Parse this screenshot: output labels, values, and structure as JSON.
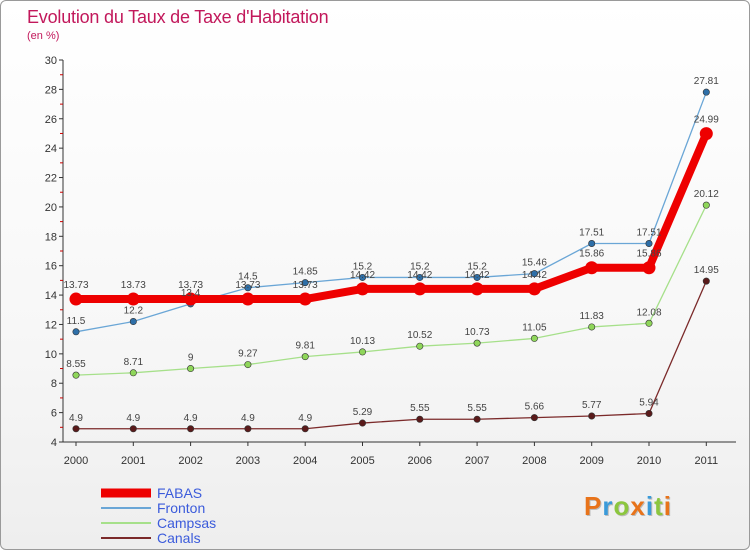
{
  "title": "Evolution du Taux de Taxe d'Habitation",
  "subtitle": "(en %)",
  "logo": "Proxiti",
  "colors": {
    "title": "#c2185b",
    "FABAS": "#ee0000",
    "Fronton": "#6aa6d6",
    "Campsas": "#a6e08a",
    "Canals": "#7b2a2a"
  },
  "chart_data": {
    "type": "line",
    "categories": [
      "2000",
      "2001",
      "2002",
      "2003",
      "2004",
      "2005",
      "2006",
      "2007",
      "2008",
      "2009",
      "2010",
      "2011"
    ],
    "ylim": [
      4,
      30
    ],
    "yticks": [
      4,
      6,
      8,
      10,
      12,
      14,
      16,
      18,
      20,
      22,
      24,
      26,
      28,
      30
    ],
    "grid": false,
    "legend_placement": "bottom-left",
    "series": [
      {
        "name": "FABAS",
        "values": [
          13.73,
          13.73,
          13.73,
          13.73,
          13.73,
          14.42,
          14.42,
          14.42,
          14.42,
          15.86,
          15.86,
          24.99
        ],
        "labels": [
          "13.73",
          "13.73",
          "13.73",
          "13.73",
          "13.73",
          "14.42",
          "14.42",
          "14.42",
          "14.42",
          "15.86",
          "15.86",
          "24.99"
        ]
      },
      {
        "name": "Fronton",
        "values": [
          11.5,
          12.2,
          13.4,
          14.5,
          14.85,
          15.2,
          15.2,
          15.2,
          15.46,
          17.51,
          17.51,
          27.81
        ],
        "labels": [
          "11.5",
          "12.2",
          "13.4",
          "14.5",
          "14.85",
          "15.2",
          "15.2",
          "15.2",
          "15.46",
          "17.51",
          "17.51",
          "27.81"
        ]
      },
      {
        "name": "Campsas",
        "values": [
          8.55,
          8.71,
          9,
          9.27,
          9.81,
          10.13,
          10.52,
          10.73,
          11.05,
          11.83,
          12.08,
          20.12
        ],
        "labels": [
          "8.55",
          "8.71",
          "9",
          "9.27",
          "9.81",
          "10.13",
          "10.52",
          "10.73",
          "11.05",
          "11.83",
          "12.08",
          "20.12"
        ]
      },
      {
        "name": "Canals",
        "values": [
          4.9,
          4.9,
          4.9,
          4.9,
          4.9,
          5.29,
          5.55,
          5.55,
          5.66,
          5.77,
          5.94,
          14.95
        ],
        "labels": [
          "4.9",
          "4.9",
          "4.9",
          "4.9",
          "4.9",
          "5.29",
          "5.55",
          "5.55",
          "5.66",
          "5.77",
          "5.94",
          "14.95"
        ]
      }
    ]
  }
}
